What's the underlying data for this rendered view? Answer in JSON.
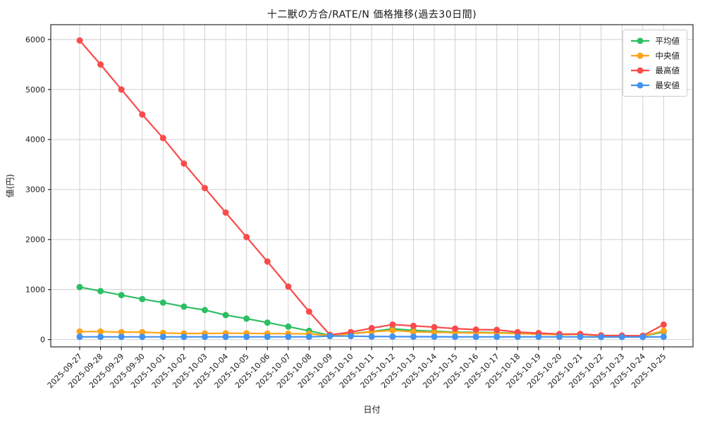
{
  "title": "十二獣の方合/RATE/N 価格推移(過去30日間)",
  "chart_data": {
    "type": "line",
    "title": "十二獣の方合/RATE/N 価格推移(過去30日間)",
    "xlabel": "日付",
    "ylabel": "値(円)",
    "ylim": [
      0,
      6000
    ],
    "yticks": [
      0,
      1000,
      2000,
      3000,
      4000,
      5000,
      6000
    ],
    "grid": true,
    "legend_position": "upper right",
    "dates": [
      "2025-09-27",
      "2025-09-28",
      "2025-09-29",
      "2025-09-30",
      "2025-10-01",
      "2025-10-02",
      "2025-10-03",
      "2025-10-04",
      "2025-10-05",
      "2025-10-06",
      "2025-10-07",
      "2025-10-08",
      "2025-10-09",
      "2025-10-10",
      "2025-10-11",
      "2025-10-12",
      "2025-10-13",
      "2025-10-14",
      "2025-10-15",
      "2025-10-16",
      "2025-10-17",
      "2025-10-18",
      "2025-10-19",
      "2025-10-20",
      "2025-10-21",
      "2025-10-22",
      "2025-10-23",
      "2025-10-24",
      "2025-10-25"
    ],
    "series": [
      {
        "name": "平均値",
        "color": "#2dbe64",
        "values": [
          1050,
          970,
          890,
          810,
          740,
          660,
          590,
          490,
          420,
          340,
          260,
          175,
          85,
          120,
          160,
          215,
          185,
          165,
          150,
          145,
          140,
          125,
          110,
          100,
          105,
          80,
          72,
          68,
          155
        ]
      },
      {
        "name": "中央値",
        "color": "#ffa418",
        "values": [
          160,
          160,
          150,
          150,
          132,
          122,
          122,
          127,
          125,
          120,
          118,
          115,
          80,
          115,
          155,
          185,
          155,
          146,
          140,
          135,
          133,
          120,
          108,
          100,
          105,
          75,
          70,
          70,
          175
        ]
      },
      {
        "name": "最高値",
        "color": "#fa4b4b",
        "values": [
          5980,
          5500,
          5000,
          4500,
          4030,
          3520,
          3030,
          2540,
          2050,
          1560,
          1060,
          560,
          95,
          150,
          230,
          300,
          275,
          250,
          220,
          200,
          195,
          150,
          130,
          112,
          112,
          85,
          80,
          78,
          300
        ]
      },
      {
        "name": "最安値",
        "color": "#4292f0",
        "values": [
          55,
          55,
          55,
          55,
          55,
          55,
          55,
          55,
          55,
          55,
          55,
          55,
          70,
          70,
          60,
          60,
          58,
          58,
          55,
          55,
          55,
          55,
          55,
          55,
          55,
          52,
          52,
          52,
          55
        ]
      }
    ]
  },
  "style": {
    "grid_color": "#cccccc",
    "spine_color": "#000000",
    "tick_label_color": "#1a1a1a",
    "background": "#ffffff"
  }
}
